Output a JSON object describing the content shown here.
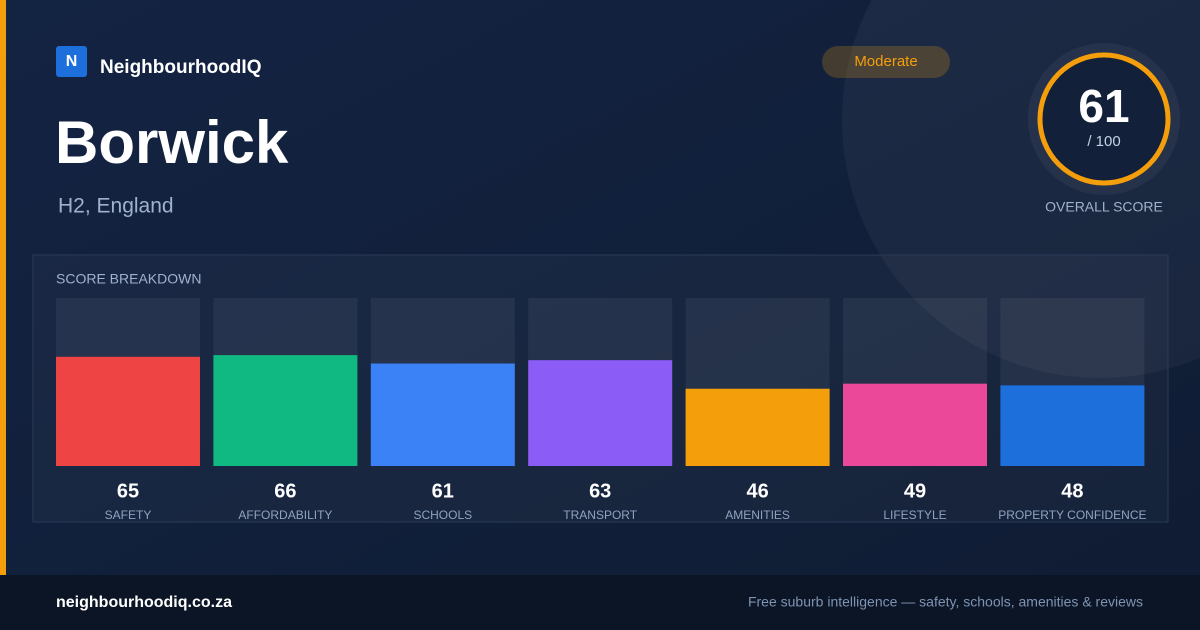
{
  "brand": {
    "logo": "N",
    "name": "NeighbourhoodIQ"
  },
  "location": {
    "name": "Borwick",
    "region": "H2, England"
  },
  "rating": "Moderate",
  "overall": {
    "score": 61,
    "out_of": "/ 100",
    "label": "OVERALL SCORE"
  },
  "chart_data": {
    "type": "bar",
    "title": "SCORE BREAKDOWN",
    "categories": [
      "SAFETY",
      "AFFORDABILITY",
      "SCHOOLS",
      "TRANSPORT",
      "AMENITIES",
      "LIFESTYLE",
      "PROPERTY CONFIDENCE"
    ],
    "values": [
      65,
      66,
      61,
      63,
      46,
      49,
      48
    ],
    "colors": [
      "#ef4444",
      "#10b981",
      "#3b82f6",
      "#8b5cf6",
      "#f59e0b",
      "#ec4899",
      "#1d6fdc"
    ],
    "ylim": [
      0,
      100
    ]
  },
  "footer": {
    "site": "neighbourhoodiq.co.za",
    "tagline": "Free suburb intelligence — safety, schools, amenities & reviews"
  }
}
